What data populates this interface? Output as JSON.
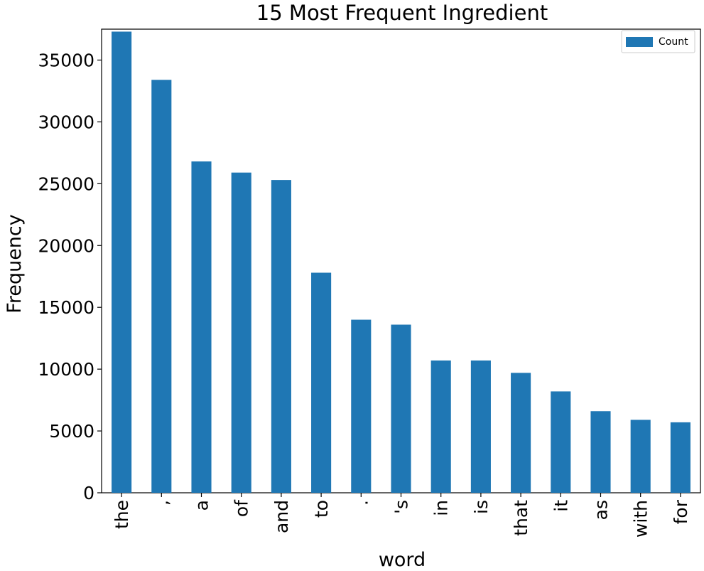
{
  "chart_data": {
    "type": "bar",
    "title": "15 Most Frequent Ingredient",
    "xlabel": "word",
    "ylabel": "Frequency",
    "categories": [
      "the",
      ",",
      "a",
      "of",
      "and",
      "to",
      ".",
      "'s",
      "in",
      "is",
      "that",
      "it",
      "as",
      "with",
      "for"
    ],
    "series": [
      {
        "name": "Count",
        "values": [
          37300,
          33400,
          26800,
          25900,
          25300,
          17800,
          14000,
          13600,
          10700,
          10700,
          9700,
          8200,
          6600,
          5900,
          5700
        ]
      }
    ],
    "ylim": [
      0,
      37500
    ],
    "yticks": [
      0,
      5000,
      10000,
      15000,
      20000,
      25000,
      30000,
      35000
    ],
    "bar_color": "#1f77b4",
    "grid": false,
    "legend_position": "top-right"
  }
}
